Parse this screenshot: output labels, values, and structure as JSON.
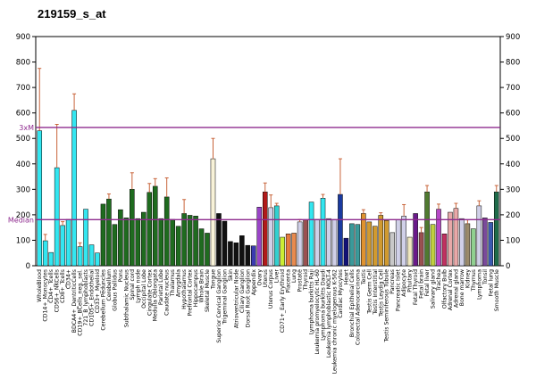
{
  "chart_data": {
    "type": "bar",
    "title": "219159_s_at",
    "ylim": [
      0,
      900
    ],
    "yticks": [
      0,
      100,
      200,
      300,
      400,
      500,
      600,
      700,
      800,
      900
    ],
    "reference_lines": [
      {
        "label": "3xM",
        "value": 543,
        "color": "#8e2a8e"
      },
      {
        "label": "Median",
        "value": 181,
        "color": "#8e2a8e"
      }
    ],
    "categories": [
      "WholeBlood",
      "CD14+_Monocytes",
      "CD4+_Tcells",
      "CD56+_NKCells",
      "CD8+_Tcells",
      "CD34+",
      "BDCA4+_DentriticCells",
      "CD19+_BCells_neg._sel.",
      "721_B_lymphoblasts",
      "CD105+_Endothelial",
      "CD33+_Myeloid",
      "Cerebellum Peduncles",
      "Cerebellum",
      "Globus Pallidus",
      "Pons",
      "Subthalamic Nucleus",
      "Spinal cord",
      "Lymph node",
      "Occipital Lobe",
      "Cingulate Cortex",
      "Medulla Oblongata",
      "Parietal Lobe",
      "Caudate nucleus",
      "Thalamus",
      "Amygdala",
      "Hypothalamus",
      "Prefrontal Cortex",
      "Hippocampus",
      "Whole Brain",
      "Skeletal Muscle",
      "Tongue",
      "Superior Cervical Ganglion",
      "Trigeminal Ganglion",
      "Skin",
      "Atrioventricular Node",
      "Ciliary Ganglion",
      "Dorsal Root Ganglion",
      "Appendix",
      "Ovary",
      "Uterus",
      "Uterus Corpus",
      "Liver",
      "CD71+_Early Erythroid",
      "Placenta",
      "Lung",
      "Prostate",
      "Thyroid",
      "Lymphoma burkitts Raji",
      "Leukemia promyelocytic HL-60",
      "Lymphoma burkitts Daudi",
      "Leukemia lymphoblastic MOLT-4",
      "Leukemia chronic myelogenous K-562",
      "Cardiac Myocytes",
      "Heart",
      "Bronchial Epithelial Cells",
      "Colorectal Adenocarcinoma",
      "Testis",
      "Testis Germ Cell",
      "Testis Interstitial",
      "Testis Leydig Cell",
      "Testis Seminiferous Tubule",
      "Pancreas",
      "Pancreatic Islet",
      "Adipocyte",
      "Pituitary",
      "Fetal Thyroid",
      "Fetal brain",
      "Fetal liver",
      "Salivary gland",
      "Trachea",
      "Olfactory Bulb",
      "Adrenal Cortex",
      "Adrenal gland",
      "Bone marrow",
      "Kidney",
      "Thymus",
      "Lymphoma",
      "Tonsil",
      "Fetal lung",
      "Smooth Muscle"
    ],
    "values": [
      530,
      98,
      52,
      385,
      158,
      182,
      610,
      75,
      222,
      82,
      50,
      242,
      262,
      162,
      220,
      188,
      300,
      185,
      210,
      288,
      312,
      185,
      270,
      182,
      155,
      205,
      198,
      195,
      145,
      128,
      420,
      205,
      175,
      95,
      90,
      118,
      80,
      78,
      230,
      290,
      228,
      235,
      112,
      125,
      128,
      172,
      180,
      250,
      182,
      265,
      185,
      180,
      280,
      108,
      165,
      162,
      205,
      172,
      155,
      198,
      178,
      130,
      180,
      195,
      112,
      205,
      130,
      290,
      162,
      222,
      125,
      210,
      225,
      185,
      165,
      145,
      235,
      188,
      170,
      290
    ],
    "errors": [
      245,
      25,
      0,
      170,
      15,
      0,
      65,
      15,
      0,
      0,
      0,
      0,
      20,
      0,
      0,
      0,
      65,
      0,
      0,
      35,
      30,
      0,
      75,
      0,
      0,
      55,
      0,
      0,
      0,
      0,
      80,
      0,
      0,
      0,
      0,
      0,
      0,
      0,
      0,
      35,
      50,
      10,
      0,
      0,
      0,
      10,
      0,
      0,
      0,
      15,
      0,
      0,
      140,
      0,
      0,
      0,
      15,
      0,
      0,
      10,
      0,
      0,
      0,
      45,
      0,
      0,
      20,
      25,
      0,
      20,
      0,
      0,
      20,
      0,
      15,
      0,
      20,
      0,
      0,
      25
    ],
    "colors": [
      "#33e6f0",
      "#33e6f0",
      "#33e6f0",
      "#33e6f0",
      "#33e6f0",
      "#33e6f0",
      "#33e6f0",
      "#33e6f0",
      "#33e6f0",
      "#33e6f0",
      "#33e6f0",
      "#1f6b1f",
      "#1f6b1f",
      "#1f6b1f",
      "#1f6b1f",
      "#1f6b1f",
      "#1f6b1f",
      "#1f6b1f",
      "#1f6b1f",
      "#1f6b1f",
      "#1f6b1f",
      "#1f6b1f",
      "#1f6b1f",
      "#1f6b1f",
      "#1f6b1f",
      "#1f6b1f",
      "#1f6b1f",
      "#1f6b1f",
      "#1f6b1f",
      "#1f6b1f",
      "#f8f2d8",
      "#111111",
      "#111111",
      "#111111",
      "#111111",
      "#111111",
      "#111111",
      "#3a3ab0",
      "#9a44c8",
      "#b01a1a",
      "#d0d0e8",
      "#33d0d0",
      "#ccee33",
      "#e57a3e",
      "#e88a4e",
      "#d0d0e8",
      "#9a5050",
      "#33e6f0",
      "#d0d0e8",
      "#33e6f0",
      "#d0d0e8",
      "#d0d0e8",
      "#1a3aa0",
      "#111177",
      "#3a9a9a",
      "#3a9a9a",
      "#e0922e",
      "#d09a30",
      "#d09a30",
      "#d09a30",
      "#d09a30",
      "#c8c8c8",
      "#d0d0e8",
      "#d0d0e8",
      "#f0e8c0",
      "#6a1a8a",
      "#9a5050",
      "#507a30",
      "#c0d040",
      "#b848c8",
      "#c03060",
      "#e8a8a8",
      "#e8a8a8",
      "#d0d0e8",
      "#9a8a6a",
      "#90d090",
      "#d0d0e8",
      "#7a4a9a",
      "#3a5ab0",
      "#1f6b4a"
    ]
  }
}
